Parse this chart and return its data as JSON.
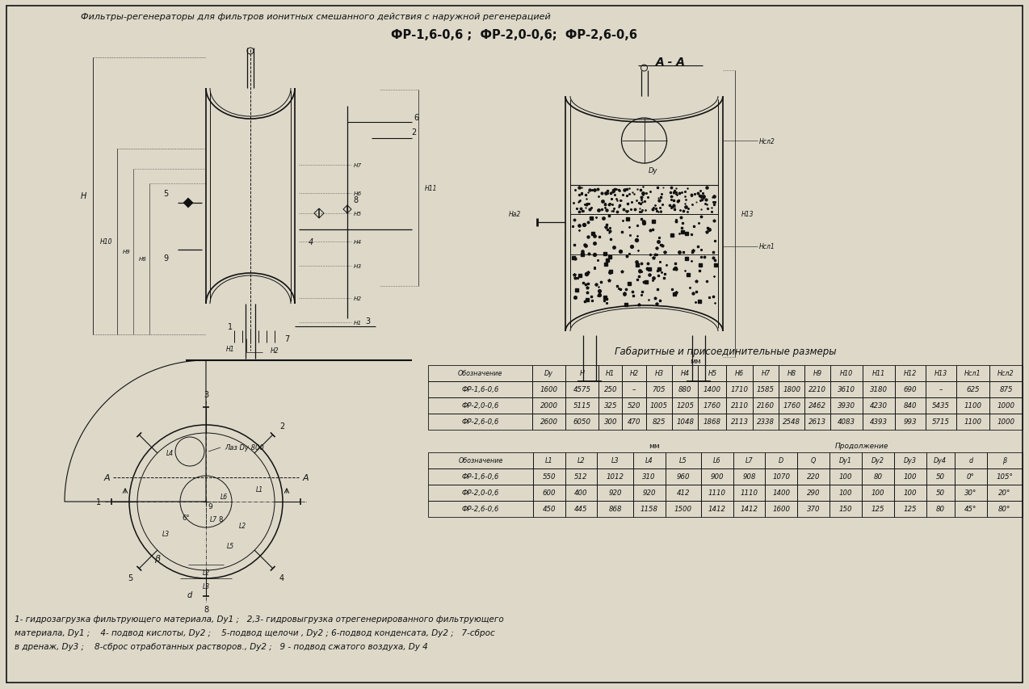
{
  "title_line1": "Фильтры-регенераторы для фильтров ионитных смешанного действия с наружной регенерацией",
  "title_line2": "ФР-1,6-0,6 ;  ФР-2,0-0,6;  ФР-2,6-0,6",
  "section_label": "А - А",
  "table_title": "Габаритные и присоединительные размеры",
  "mm_label": "мм",
  "cont_label": "Продолжение",
  "table1_headers": [
    "Обозначение",
    "Dy",
    "H",
    "H1",
    "H2",
    "H3",
    "H4",
    "H5",
    "H6",
    "H7",
    "H8",
    "H9",
    "H10",
    "H11",
    "H12",
    "H13",
    "Нсл1",
    "Нсл2"
  ],
  "table1_rows": [
    [
      "ФР-1,6-0,6",
      "1600",
      "4575",
      "250",
      "–",
      "705",
      "880",
      "1400",
      "1710",
      "1585",
      "1800",
      "2210",
      "3610",
      "3180",
      "690",
      "–",
      "625",
      "875"
    ],
    [
      "ФР-2,0-0,6",
      "2000",
      "5115",
      "325",
      "520",
      "1005",
      "1205",
      "1760",
      "2110",
      "2160",
      "1760",
      "2462",
      "3930",
      "4230",
      "840",
      "5435",
      "1100",
      "1000"
    ],
    [
      "ФР-2,6-0,6",
      "2600",
      "6050",
      "300",
      "470",
      "825",
      "1048",
      "1868",
      "2113",
      "2338",
      "2548",
      "2613",
      "4083",
      "4393",
      "993",
      "5715",
      "1100",
      "1000"
    ]
  ],
  "table2_headers": [
    "Обозначение",
    "L1",
    "L2",
    "L3",
    "L4",
    "L5",
    "L6",
    "L7",
    "D",
    "Q",
    "Dy1",
    "Dy2",
    "Dy3",
    "Dy4",
    "d",
    "β"
  ],
  "table2_rows": [
    [
      "ФР-1,6-0,6",
      "550",
      "512",
      "1012",
      "310",
      "960",
      "900",
      "908",
      "1070",
      "220",
      "100",
      "80",
      "100",
      "50",
      "0°",
      "105°"
    ],
    [
      "ФР-2,0-0,6",
      "600",
      "400",
      "920",
      "920",
      "412",
      "1110",
      "1110",
      "1400",
      "290",
      "100",
      "100",
      "100",
      "50",
      "30°",
      "20°"
    ],
    [
      "ФР-2,6-0,6",
      "450",
      "445",
      "868",
      "1158",
      "1500",
      "1412",
      "1412",
      "1600",
      "370",
      "150",
      "125",
      "125",
      "80",
      "45°",
      "80°"
    ]
  ],
  "footnote_lines": [
    "1- гидрозагрузка фильтрующего материала, Dy1 ;   2,3- гидровыгрузка отрегенерированного фильтрующего",
    "материала, Dy1 ;    4- подвод кислоты, Dy2 ;    5-подвод щелочи , Dy2 ; 6-подвод конденсата, Dy2 ;   7-сброс",
    "в дренаж, Dy3 ;    8-сброс отработанных растворов., Dy2 ;   9 - подвод сжатого воздуха, Dy 4"
  ],
  "laz_label": "Лаз Dy 800",
  "bg_color": "#ddd8c8",
  "line_color": "#111111",
  "text_color": "#111111"
}
